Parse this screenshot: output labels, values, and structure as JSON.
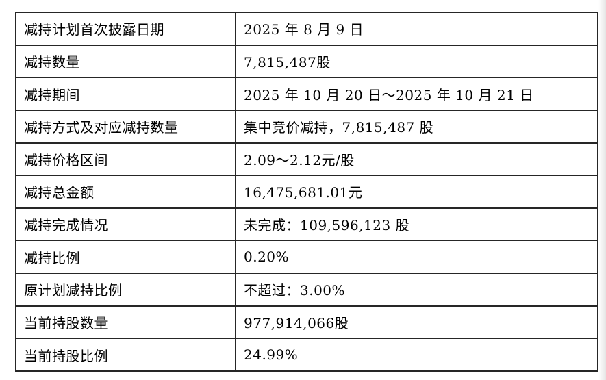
{
  "page": {
    "background": "#ffffff",
    "border_color": "#262626",
    "text_color": "#000000"
  },
  "table": {
    "rows": [
      {
        "label": "减持计划首次披露日期",
        "value": "2025 年 8 月 9 日"
      },
      {
        "label": "减持数量",
        "value": "7,815,487股"
      },
      {
        "label": "减持期间",
        "value": "2025 年 10 月 20 日～2025 年 10 月 21 日"
      },
      {
        "label": "减持方式及对应减持数量",
        "value": "集中竞价减持，7,815,487 股"
      },
      {
        "label": "减持价格区间",
        "value": "2.09～2.12元/股"
      },
      {
        "label": "减持总金额",
        "value": "16,475,681.01元"
      },
      {
        "label": "减持完成情况",
        "value": "未完成：109,596,123 股"
      },
      {
        "label": "减持比例",
        "value": "0.20%"
      },
      {
        "label": "原计划减持比例",
        "value": "不超过：3.00%"
      },
      {
        "label": "当前持股数量",
        "value": "977,914,066股"
      },
      {
        "label": "当前持股比例",
        "value": "24.99%"
      }
    ]
  }
}
